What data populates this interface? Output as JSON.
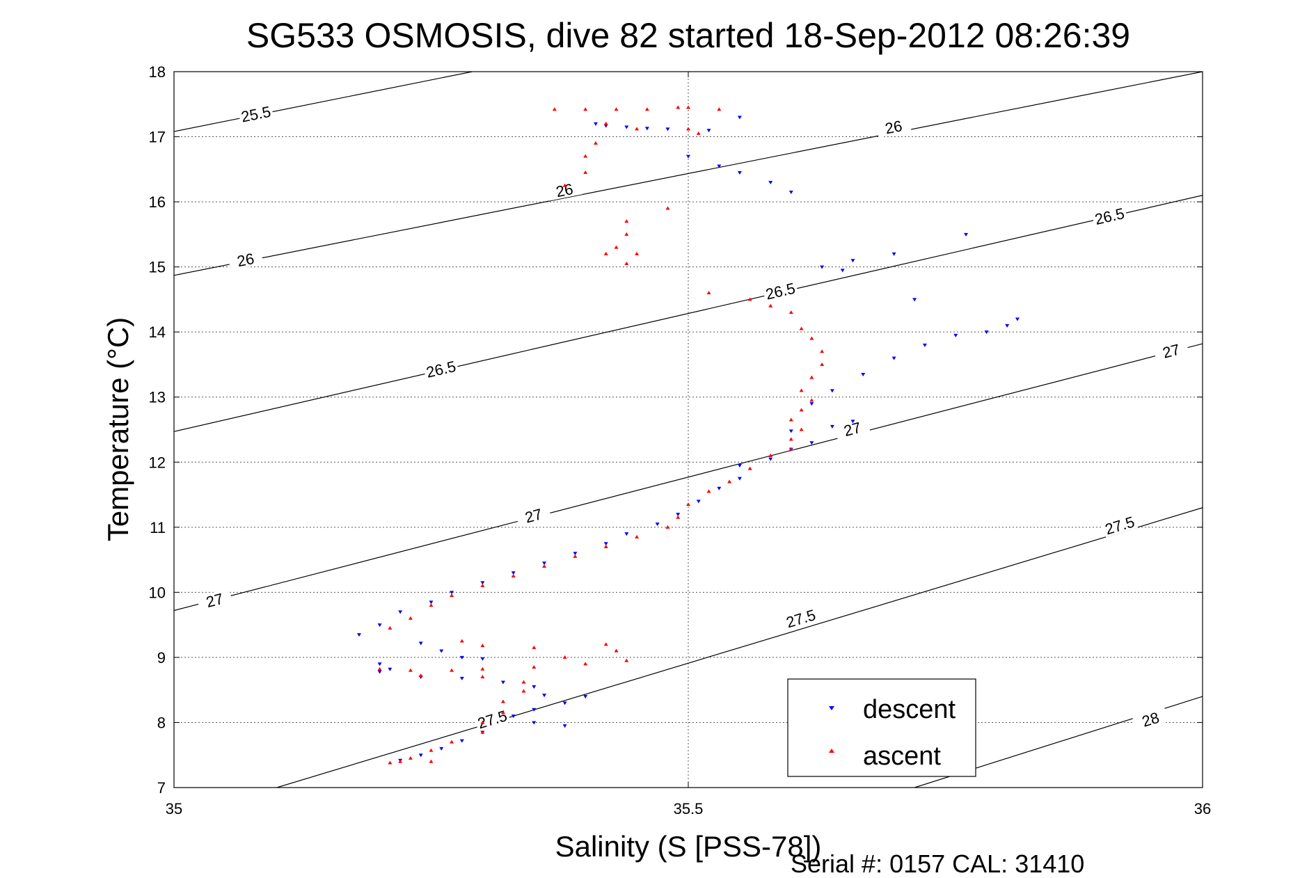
{
  "chart_data": {
    "type": "scatter",
    "title": "SG533 OSMOSIS, dive 82 started 18-Sep-2012 08:26:39",
    "xlabel": "Salinity (S [PSS-78])",
    "ylabel": "Temperature (°C)",
    "xlim": [
      35,
      36
    ],
    "ylim": [
      7,
      18
    ],
    "xticks": [
      "35",
      "35.5",
      "36"
    ],
    "yticks": [
      "7",
      "8",
      "9",
      "10",
      "11",
      "12",
      "13",
      "14",
      "15",
      "16",
      "17",
      "18"
    ],
    "grid": true,
    "legend_position": "bottom-right",
    "footer": "Serial #: 0157  CAL: 31410",
    "density_contours": [
      {
        "level": "25.5",
        "points": [
          [
            35.0,
            17.08
          ],
          [
            35.29,
            18.0
          ]
        ],
        "labels": [
          [
            35.08,
            17.32
          ]
        ]
      },
      {
        "level": "26",
        "points": [
          [
            35.0,
            14.87
          ],
          [
            36.0,
            18.0
          ]
        ],
        "labels": [
          [
            35.07,
            15.08
          ],
          [
            35.38,
            16.15
          ],
          [
            35.7,
            17.12
          ]
        ]
      },
      {
        "level": "26.5",
        "points": [
          [
            35.0,
            12.47
          ],
          [
            36.0,
            16.1
          ]
        ],
        "labels": [
          [
            35.26,
            13.4
          ],
          [
            35.59,
            14.6
          ],
          [
            35.91,
            15.75
          ]
        ]
      },
      {
        "level": "27",
        "points": [
          [
            35.0,
            9.72
          ],
          [
            36.0,
            13.82
          ]
        ],
        "labels": [
          [
            35.04,
            9.85
          ],
          [
            35.35,
            11.15
          ],
          [
            35.66,
            12.48
          ],
          [
            35.97,
            13.68
          ]
        ]
      },
      {
        "level": "27.5",
        "points": [
          [
            35.1,
            7.0
          ],
          [
            36.0,
            11.3
          ]
        ],
        "labels": [
          [
            35.31,
            8.02
          ],
          [
            35.61,
            9.57
          ],
          [
            35.92,
            11.0
          ]
        ]
      },
      {
        "level": "28",
        "points": [
          [
            35.72,
            7.0
          ],
          [
            36.0,
            8.4
          ]
        ],
        "labels": [
          [
            35.95,
            8.02
          ]
        ]
      }
    ],
    "series": [
      {
        "name": "descent",
        "color": "#0000ff",
        "marker": "triangle-down",
        "points": [
          [
            35.55,
            17.3
          ],
          [
            35.41,
            17.2
          ],
          [
            35.42,
            17.17
          ],
          [
            35.44,
            17.15
          ],
          [
            35.46,
            17.13
          ],
          [
            35.48,
            17.12
          ],
          [
            35.52,
            17.1
          ],
          [
            35.5,
            16.7
          ],
          [
            35.53,
            16.55
          ],
          [
            35.55,
            16.45
          ],
          [
            35.58,
            16.3
          ],
          [
            35.6,
            16.15
          ],
          [
            35.77,
            15.5
          ],
          [
            35.7,
            15.2
          ],
          [
            35.66,
            15.1
          ],
          [
            35.63,
            15.0
          ],
          [
            35.65,
            14.95
          ],
          [
            35.72,
            14.5
          ],
          [
            35.82,
            14.2
          ],
          [
            35.81,
            14.1
          ],
          [
            35.79,
            14.0
          ],
          [
            35.76,
            13.95
          ],
          [
            35.73,
            13.8
          ],
          [
            35.7,
            13.6
          ],
          [
            35.67,
            13.35
          ],
          [
            35.64,
            13.1
          ],
          [
            35.62,
            12.9
          ],
          [
            35.66,
            12.63
          ],
          [
            35.64,
            12.55
          ],
          [
            35.6,
            12.48
          ],
          [
            35.62,
            12.3
          ],
          [
            35.6,
            12.2
          ],
          [
            35.58,
            12.05
          ],
          [
            35.55,
            11.95
          ],
          [
            35.55,
            11.75
          ],
          [
            35.53,
            11.6
          ],
          [
            35.51,
            11.4
          ],
          [
            35.49,
            11.2
          ],
          [
            35.47,
            11.05
          ],
          [
            35.44,
            10.9
          ],
          [
            35.42,
            10.75
          ],
          [
            35.39,
            10.6
          ],
          [
            35.36,
            10.45
          ],
          [
            35.33,
            10.3
          ],
          [
            35.3,
            10.15
          ],
          [
            35.27,
            10.0
          ],
          [
            35.25,
            9.85
          ],
          [
            35.22,
            9.7
          ],
          [
            35.2,
            9.5
          ],
          [
            35.18,
            9.35
          ],
          [
            35.24,
            9.22
          ],
          [
            35.26,
            9.1
          ],
          [
            35.28,
            9.0
          ],
          [
            35.3,
            8.98
          ],
          [
            35.2,
            8.9
          ],
          [
            35.21,
            8.82
          ],
          [
            35.2,
            8.78
          ],
          [
            35.24,
            8.7
          ],
          [
            35.28,
            8.68
          ],
          [
            35.32,
            8.62
          ],
          [
            35.35,
            8.55
          ],
          [
            35.36,
            8.42
          ],
          [
            35.4,
            8.4
          ],
          [
            35.38,
            8.3
          ],
          [
            35.35,
            8.2
          ],
          [
            35.33,
            8.1
          ],
          [
            35.35,
            8.0
          ],
          [
            35.38,
            7.95
          ],
          [
            35.3,
            7.85
          ],
          [
            35.28,
            7.72
          ],
          [
            35.26,
            7.6
          ],
          [
            35.24,
            7.5
          ],
          [
            35.22,
            7.42
          ]
        ]
      },
      {
        "name": "ascent",
        "color": "#ff0000",
        "marker": "triangle-up",
        "points": [
          [
            35.37,
            17.42
          ],
          [
            35.4,
            17.42
          ],
          [
            35.43,
            17.42
          ],
          [
            35.46,
            17.42
          ],
          [
            35.49,
            17.45
          ],
          [
            35.5,
            17.45
          ],
          [
            35.53,
            17.42
          ],
          [
            35.42,
            17.2
          ],
          [
            35.45,
            17.12
          ],
          [
            35.5,
            17.12
          ],
          [
            35.51,
            17.05
          ],
          [
            35.41,
            16.9
          ],
          [
            35.4,
            16.7
          ],
          [
            35.4,
            16.45
          ],
          [
            35.38,
            16.25
          ],
          [
            35.48,
            15.9
          ],
          [
            35.44,
            15.7
          ],
          [
            35.44,
            15.5
          ],
          [
            35.43,
            15.3
          ],
          [
            35.45,
            15.2
          ],
          [
            35.42,
            15.2
          ],
          [
            35.44,
            15.05
          ],
          [
            35.52,
            14.6
          ],
          [
            35.56,
            14.5
          ],
          [
            35.58,
            14.4
          ],
          [
            35.6,
            14.3
          ],
          [
            35.61,
            14.05
          ],
          [
            35.62,
            13.9
          ],
          [
            35.63,
            13.7
          ],
          [
            35.63,
            13.5
          ],
          [
            35.62,
            13.3
          ],
          [
            35.61,
            13.1
          ],
          [
            35.62,
            12.95
          ],
          [
            35.61,
            12.8
          ],
          [
            35.6,
            12.65
          ],
          [
            35.61,
            12.5
          ],
          [
            35.6,
            12.35
          ],
          [
            35.6,
            12.2
          ],
          [
            35.58,
            12.1
          ],
          [
            35.56,
            11.9
          ],
          [
            35.54,
            11.7
          ],
          [
            35.52,
            11.55
          ],
          [
            35.5,
            11.35
          ],
          [
            35.49,
            11.15
          ],
          [
            35.48,
            11.0
          ],
          [
            35.45,
            10.85
          ],
          [
            35.42,
            10.7
          ],
          [
            35.39,
            10.55
          ],
          [
            35.36,
            10.4
          ],
          [
            35.33,
            10.25
          ],
          [
            35.3,
            10.1
          ],
          [
            35.27,
            9.95
          ],
          [
            35.25,
            9.8
          ],
          [
            35.23,
            9.6
          ],
          [
            35.21,
            9.45
          ],
          [
            35.28,
            9.25
          ],
          [
            35.3,
            9.18
          ],
          [
            35.35,
            9.15
          ],
          [
            35.42,
            9.2
          ],
          [
            35.43,
            9.1
          ],
          [
            35.38,
            9.0
          ],
          [
            35.44,
            8.95
          ],
          [
            35.4,
            8.9
          ],
          [
            35.35,
            8.85
          ],
          [
            35.3,
            8.82
          ],
          [
            35.27,
            8.8
          ],
          [
            35.23,
            8.8
          ],
          [
            35.2,
            8.82
          ],
          [
            35.24,
            8.72
          ],
          [
            35.3,
            8.7
          ],
          [
            35.34,
            8.62
          ],
          [
            35.34,
            8.48
          ],
          [
            35.32,
            8.32
          ],
          [
            35.32,
            8.15
          ],
          [
            35.3,
            8.0
          ],
          [
            35.3,
            7.85
          ],
          [
            35.27,
            7.7
          ],
          [
            35.25,
            7.57
          ],
          [
            35.23,
            7.45
          ],
          [
            35.21,
            7.38
          ],
          [
            35.25,
            7.4
          ],
          [
            35.22,
            7.4
          ]
        ]
      }
    ]
  }
}
